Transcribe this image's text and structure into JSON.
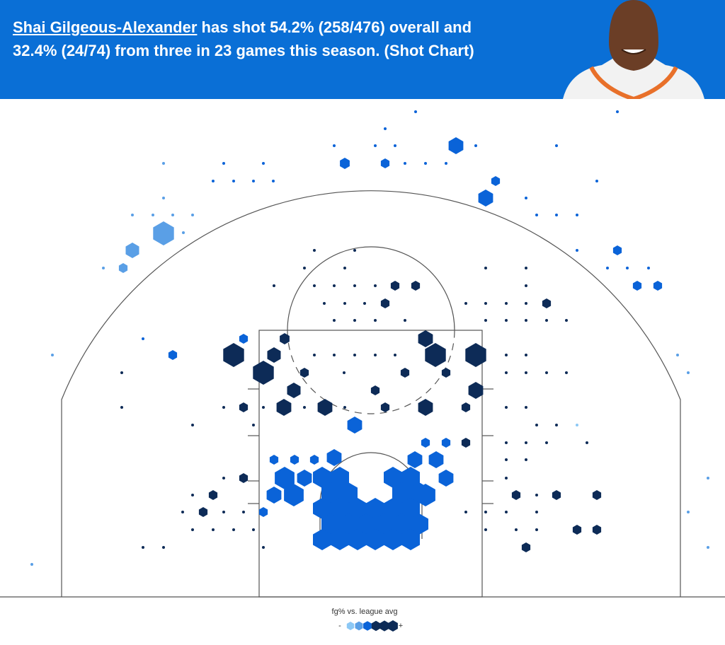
{
  "header": {
    "player_name": "Shai Gilgeous-Alexander",
    "text_line1": "has shot 54.2% (258/476) overall and",
    "text_line2": "32.4% (24/74) from three in 23 games this season. (Shot Chart)"
  },
  "legend": {
    "title": "fg% vs. league avg",
    "low": "-",
    "high": "+"
  }
}
